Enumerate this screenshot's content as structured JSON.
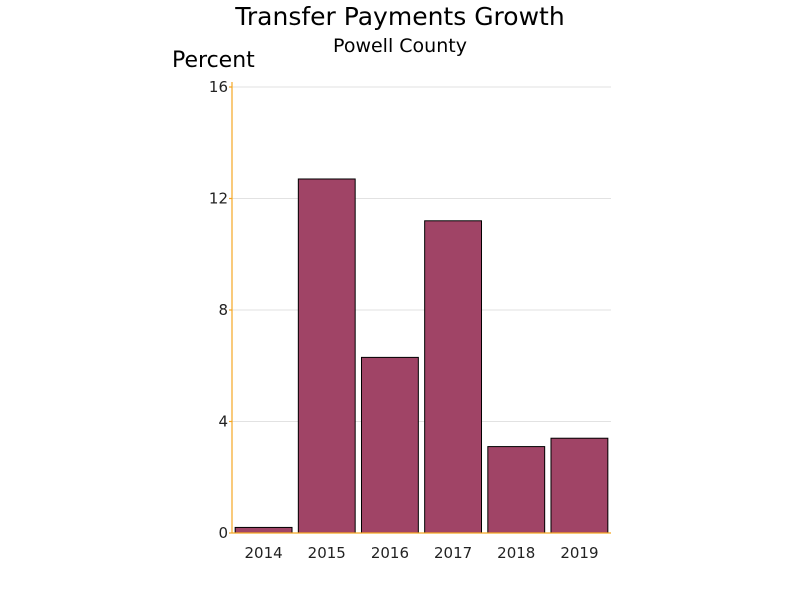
{
  "chart_data": {
    "type": "bar",
    "title": "Transfer Payments Growth",
    "subtitle": "Powell County",
    "ylabel": "Percent",
    "xlabel": "",
    "categories": [
      "2014",
      "2015",
      "2016",
      "2017",
      "2018",
      "2019"
    ],
    "values": [
      0.2,
      12.7,
      6.3,
      11.2,
      3.1,
      3.4
    ],
    "ylim": [
      0,
      16
    ],
    "yticks": [
      0,
      4,
      8,
      12,
      16
    ],
    "grid": true,
    "legend": "none",
    "colors": {
      "bar": "#a04466",
      "axis": "#f5a623",
      "grid": "#e2e2e2"
    }
  }
}
